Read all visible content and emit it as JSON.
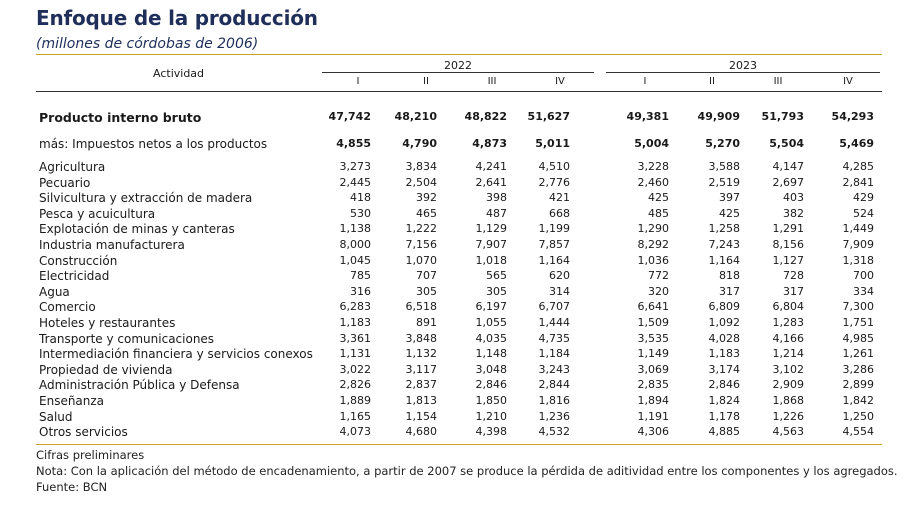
{
  "title": "Enfoque de la producción",
  "subtitle": "(millones de córdobas de 2006)",
  "header": {
    "activity": "Actividad",
    "years": [
      "2022",
      "2023"
    ],
    "quarters": [
      "I",
      "II",
      "III",
      "IV",
      "I",
      "II",
      "III",
      "IV"
    ]
  },
  "rows": [
    {
      "label": "Producto interno bruto",
      "values": [
        "47,742",
        "48,210",
        "48,822",
        "51,627",
        "49,381",
        "49,909",
        "51,793",
        "54,293"
      ]
    },
    {
      "label": "más: Impuestos netos a los productos",
      "values": [
        "4,855",
        "4,790",
        "4,873",
        "5,011",
        "5,004",
        "5,270",
        "5,504",
        "5,469"
      ]
    },
    {
      "label": "Agricultura",
      "values": [
        "3,273",
        "3,834",
        "4,241",
        "4,510",
        "3,228",
        "3,588",
        "4,147",
        "4,285"
      ]
    },
    {
      "label": "Pecuario",
      "values": [
        "2,445",
        "2,504",
        "2,641",
        "2,776",
        "2,460",
        "2,519",
        "2,697",
        "2,841"
      ]
    },
    {
      "label": "Silvicultura y extracción de madera",
      "values": [
        "418",
        "392",
        "398",
        "421",
        "425",
        "397",
        "403",
        "429"
      ]
    },
    {
      "label": "Pesca y acuicultura",
      "values": [
        "530",
        "465",
        "487",
        "668",
        "485",
        "425",
        "382",
        "524"
      ]
    },
    {
      "label": "Explotación de minas y canteras",
      "values": [
        "1,138",
        "1,222",
        "1,129",
        "1,199",
        "1,290",
        "1,258",
        "1,291",
        "1,449"
      ]
    },
    {
      "label": "Industria manufacturera",
      "values": [
        "8,000",
        "7,156",
        "7,907",
        "7,857",
        "8,292",
        "7,243",
        "8,156",
        "7,909"
      ]
    },
    {
      "label": "Construcción",
      "values": [
        "1,045",
        "1,070",
        "1,018",
        "1,164",
        "1,036",
        "1,164",
        "1,127",
        "1,318"
      ]
    },
    {
      "label": "Electricidad",
      "values": [
        "785",
        "707",
        "565",
        "620",
        "772",
        "818",
        "728",
        "700"
      ]
    },
    {
      "label": "Agua",
      "values": [
        "316",
        "305",
        "305",
        "314",
        "320",
        "317",
        "317",
        "334"
      ]
    },
    {
      "label": "Comercio",
      "values": [
        "6,283",
        "6,518",
        "6,197",
        "6,707",
        "6,641",
        "6,809",
        "6,804",
        "7,300"
      ]
    },
    {
      "label": "Hoteles y restaurantes",
      "values": [
        "1,183",
        "891",
        "1,055",
        "1,444",
        "1,509",
        "1,092",
        "1,283",
        "1,751"
      ]
    },
    {
      "label": "Transporte y comunicaciones",
      "values": [
        "3,361",
        "3,848",
        "4,035",
        "4,735",
        "3,535",
        "4,028",
        "4,166",
        "4,985"
      ]
    },
    {
      "label": "Intermediación financiera y servicios conexos",
      "values": [
        "1,131",
        "1,132",
        "1,148",
        "1,184",
        "1,149",
        "1,183",
        "1,214",
        "1,261"
      ]
    },
    {
      "label": "Propiedad de vivienda",
      "values": [
        "3,022",
        "3,117",
        "3,048",
        "3,243",
        "3,069",
        "3,174",
        "3,102",
        "3,286"
      ]
    },
    {
      "label": "Administración Pública y Defensa",
      "values": [
        "2,826",
        "2,837",
        "2,846",
        "2,844",
        "2,835",
        "2,846",
        "2,909",
        "2,899"
      ]
    },
    {
      "label": "Enseñanza",
      "values": [
        "1,889",
        "1,813",
        "1,850",
        "1,816",
        "1,894",
        "1,824",
        "1,868",
        "1,842"
      ]
    },
    {
      "label": "Salud",
      "values": [
        "1,165",
        "1,154",
        "1,210",
        "1,236",
        "1,191",
        "1,178",
        "1,226",
        "1,250"
      ]
    },
    {
      "label": "Otros servicios",
      "values": [
        "4,073",
        "4,680",
        "4,398",
        "4,532",
        "4,306",
        "4,885",
        "4,563",
        "4,554"
      ]
    }
  ],
  "footnotes": {
    "preliminary": "Cifras preliminares",
    "note": "Nota: Con la aplicación del método de encadenamiento, a partir de 2007 se produce la pérdida de aditividad entre los componentes y los agregados.",
    "source": "Fuente: BCN"
  }
}
